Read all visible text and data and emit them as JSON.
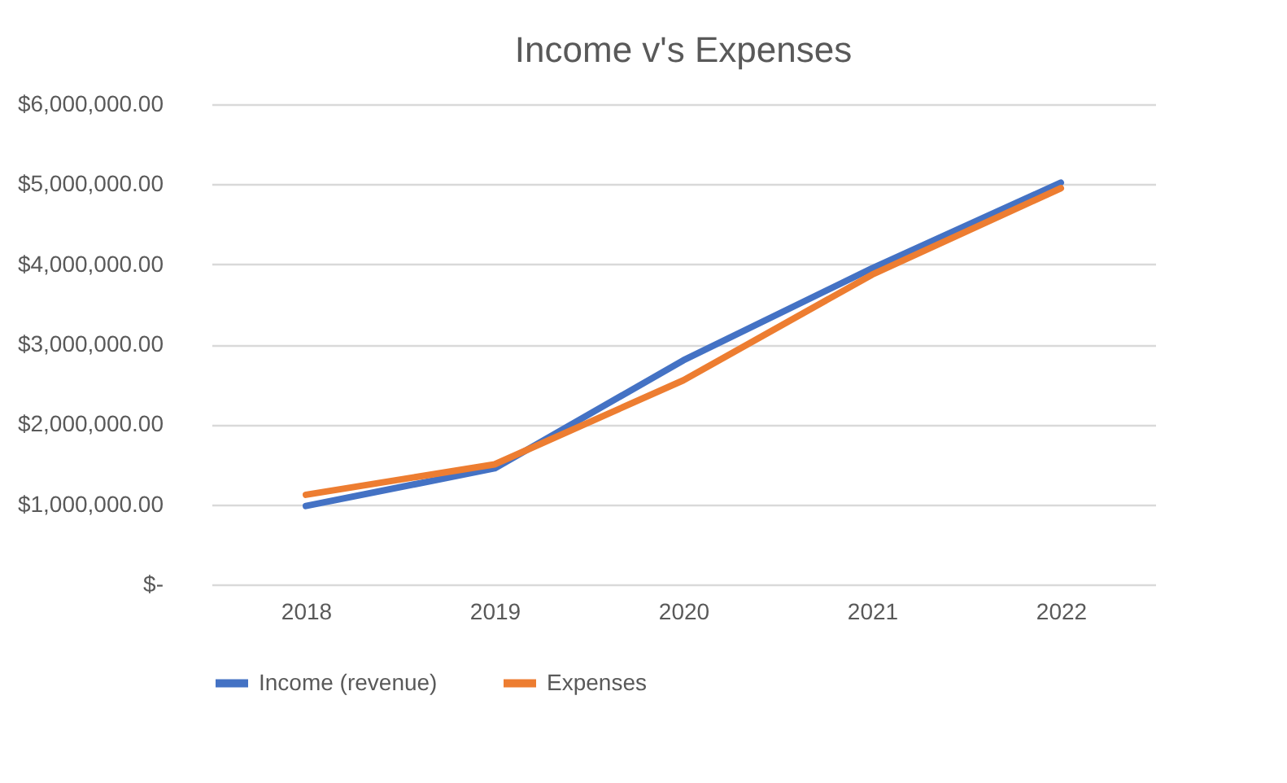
{
  "chart_data": {
    "type": "line",
    "title": "Income v's Expenses",
    "categories": [
      "2018",
      "2019",
      "2020",
      "2021",
      "2022"
    ],
    "series": [
      {
        "name": "Income (revenue)",
        "color": "#4472c4",
        "values": [
          980000,
          1450000,
          2800000,
          3950000,
          5020000
        ]
      },
      {
        "name": "Expenses",
        "color": "#ed7d31",
        "values": [
          1120000,
          1500000,
          2550000,
          3870000,
          4950000
        ]
      }
    ],
    "ylim": [
      0,
      6000000
    ],
    "yticks": [
      {
        "value": 0,
        "label": "$-"
      },
      {
        "value": 1000000,
        "label": "$1,000,000.00"
      },
      {
        "value": 2000000,
        "label": "$2,000,000.00"
      },
      {
        "value": 3000000,
        "label": "$3,000,000.00"
      },
      {
        "value": 4000000,
        "label": "$4,000,000.00"
      },
      {
        "value": 5000000,
        "label": "$5,000,000.00"
      },
      {
        "value": 6000000,
        "label": "$6,000,000.00"
      }
    ],
    "grid": "y",
    "legend": "bottom",
    "marker": "none",
    "line_style": "solid"
  }
}
